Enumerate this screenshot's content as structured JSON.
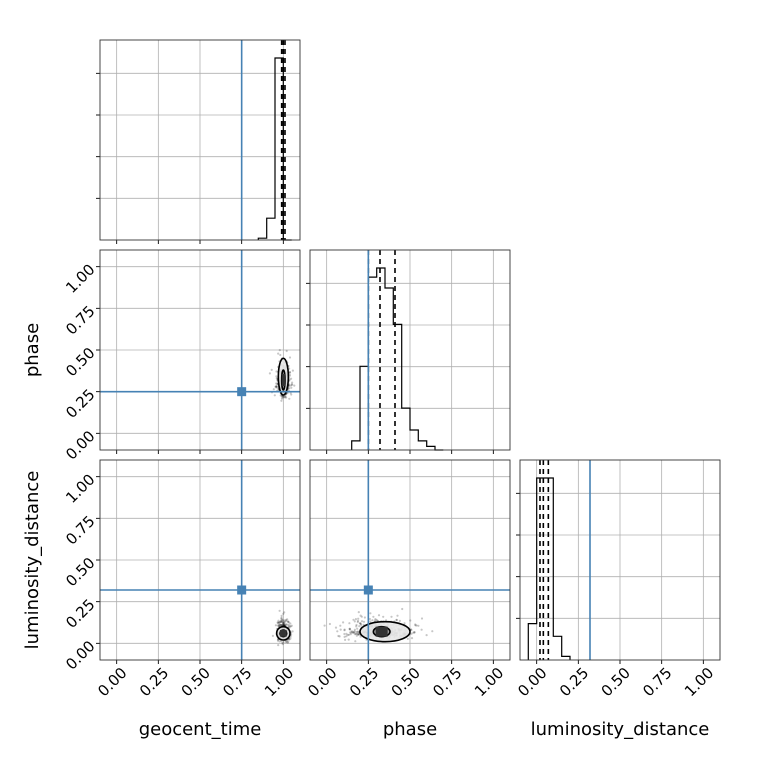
{
  "chart_data": {
    "type": "corner",
    "parameters": [
      "geocent_time",
      "phase",
      "luminosity_distance"
    ],
    "axis_labels": {
      "x": [
        "geocent_time",
        "phase",
        "luminosity_distance"
      ],
      "y": [
        "phase",
        "luminosity_distance"
      ]
    },
    "range": [
      -0.1,
      1.1
    ],
    "ticks": [
      0.0,
      0.25,
      0.5,
      0.75,
      1.0
    ],
    "tick_labels": [
      "0.00",
      "0.25",
      "0.50",
      "0.75",
      "1.00"
    ],
    "grid": true,
    "colors": {
      "truth": "#4682b4",
      "samples": "#000000",
      "grid": "#b0b0b0"
    },
    "truths": {
      "geocent_time": 0.75,
      "phase": 0.25,
      "luminosity_distance": 0.32
    },
    "histograms": [
      {
        "parameter": "geocent_time",
        "bin_edges": [
          0.85,
          0.9,
          0.95,
          1.0,
          1.05
        ],
        "counts": [
          0.01,
          0.12,
          1.0,
          0.0
        ],
        "quantiles": [
          0.99,
          1.0,
          1.01
        ]
      },
      {
        "parameter": "phase",
        "bin_edges": [
          0.15,
          0.2,
          0.25,
          0.3,
          0.35,
          0.4,
          0.45,
          0.5,
          0.55,
          0.6,
          0.65,
          0.7
        ],
        "counts": [
          0.05,
          0.46,
          0.95,
          1.0,
          0.89,
          0.69,
          0.23,
          0.11,
          0.05,
          0.02,
          0.0
        ],
        "quantiles": [
          0.25,
          0.32,
          0.41
        ]
      },
      {
        "parameter": "luminosity_distance",
        "bin_edges": [
          -0.05,
          0.0,
          0.05,
          0.1,
          0.15,
          0.2
        ],
        "counts": [
          0.2,
          1.0,
          1.0,
          0.13,
          0.02
        ],
        "quantiles": [
          0.02,
          0.04,
          0.07
        ]
      }
    ],
    "scatter_clouds": [
      {
        "x": "geocent_time",
        "y": "phase",
        "center": [
          1.0,
          0.3
        ],
        "spread": [
          0.02,
          0.07
        ],
        "contour_inner": {
          "x_range": [
            0.99,
            1.01
          ],
          "y_range": [
            0.26,
            0.38
          ]
        },
        "contour_outer": {
          "x_range": [
            0.97,
            1.03
          ],
          "y_range": [
            0.23,
            0.45
          ]
        }
      },
      {
        "x": "geocent_time",
        "y": "luminosity_distance",
        "center": [
          1.0,
          0.06
        ],
        "spread": [
          0.02,
          0.04
        ],
        "contour_inner": {
          "x_range": [
            0.98,
            1.02
          ],
          "y_range": [
            0.04,
            0.08
          ]
        },
        "contour_outer": {
          "x_range": [
            0.96,
            1.04
          ],
          "y_range": [
            0.02,
            0.1
          ]
        }
      },
      {
        "x": "phase",
        "y": "luminosity_distance",
        "center": [
          0.32,
          0.07
        ],
        "spread": [
          0.1,
          0.04
        ],
        "contour_inner": {
          "x_range": [
            0.28,
            0.38
          ],
          "y_range": [
            0.04,
            0.1
          ]
        },
        "contour_outer": {
          "x_range": [
            0.2,
            0.5
          ],
          "y_range": [
            0.01,
            0.13
          ]
        }
      }
    ]
  }
}
